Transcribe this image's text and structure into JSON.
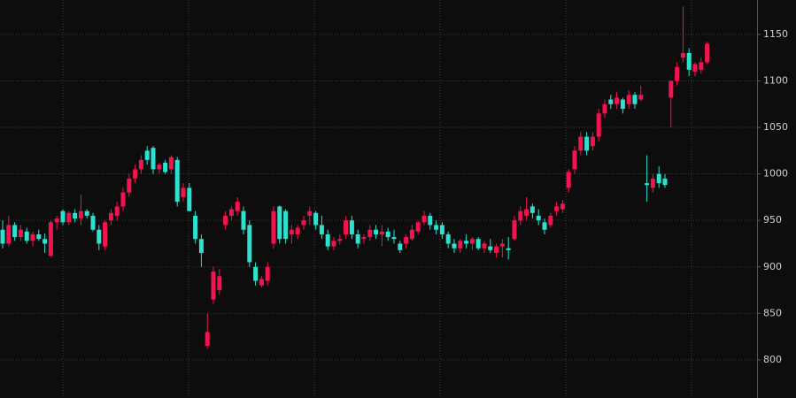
{
  "chart_data": {
    "type": "candlestick",
    "categories": [
      null,
      null,
      null,
      null,
      null,
      null,
      null,
      null,
      null,
      null,
      null,
      null,
      null,
      null,
      null,
      null,
      null,
      null,
      null,
      null,
      null,
      null,
      null,
      null,
      null,
      null,
      null,
      null,
      null,
      null,
      null,
      null,
      null,
      null,
      null,
      null,
      null,
      null,
      null,
      null,
      null,
      null,
      null,
      null,
      null,
      null,
      null,
      null,
      null,
      null,
      null,
      null,
      null,
      null,
      null,
      null,
      null,
      null,
      null,
      null,
      null,
      null,
      null,
      null,
      null,
      null,
      null,
      null,
      null,
      null,
      null,
      null,
      null,
      null,
      null,
      null,
      null,
      null,
      null,
      null,
      null,
      null,
      null,
      null,
      null,
      null,
      null,
      null,
      null,
      null,
      null,
      null,
      null,
      null,
      null,
      null,
      null,
      null,
      null,
      null,
      null,
      null,
      null,
      null,
      null,
      null,
      null,
      null,
      null,
      null,
      null,
      null,
      null,
      null,
      null,
      null,
      null,
      null
    ],
    "open": [
      940,
      925,
      945,
      932,
      938,
      928,
      935,
      930,
      912,
      948,
      960,
      948,
      958,
      952,
      960,
      955,
      940,
      922,
      950,
      955,
      965,
      980,
      995,
      1005,
      1025,
      1028,
      1005,
      1012,
      1005,
      1015,
      975,
      985,
      955,
      930,
      815,
      865,
      875,
      945,
      955,
      960,
      960,
      945,
      900,
      880,
      885,
      925,
      965,
      960,
      935,
      935,
      945,
      955,
      958,
      945,
      935,
      922,
      928,
      935,
      950,
      935,
      930,
      932,
      940,
      935,
      938,
      932,
      925,
      925,
      930,
      938,
      948,
      955,
      945,
      945,
      935,
      925,
      920,
      928,
      925,
      930,
      920,
      922,
      915,
      922,
      920,
      930,
      950,
      955,
      965,
      955,
      948,
      945,
      960,
      962,
      985,
      1005,
      1025,
      1040,
      1030,
      1040,
      1065,
      1080,
      1075,
      1080,
      1075,
      1085,
      1080,
      990,
      985,
      1000,
      995,
      1082,
      1100,
      1125,
      1130,
      1110,
      1112,
      1120
    ],
    "high": [
      950,
      955,
      948,
      945,
      942,
      938,
      940,
      936,
      950,
      955,
      962,
      960,
      962,
      978,
      962,
      958,
      945,
      950,
      962,
      970,
      985,
      1000,
      1010,
      1020,
      1030,
      1030,
      1012,
      1015,
      1020,
      1018,
      990,
      990,
      960,
      935,
      850,
      900,
      898,
      960,
      965,
      975,
      965,
      950,
      905,
      890,
      905,
      965,
      966,
      962,
      945,
      945,
      955,
      965,
      960,
      955,
      940,
      932,
      935,
      955,
      955,
      940,
      935,
      945,
      945,
      945,
      942,
      940,
      928,
      935,
      945,
      950,
      960,
      958,
      950,
      948,
      938,
      930,
      930,
      935,
      932,
      932,
      928,
      930,
      925,
      930,
      932,
      955,
      965,
      975,
      968,
      962,
      952,
      958,
      970,
      972,
      1005,
      1030,
      1045,
      1045,
      1045,
      1070,
      1080,
      1085,
      1088,
      1082,
      1090,
      1088,
      1095,
      1020,
      1000,
      1008,
      1000,
      1100,
      1120,
      1180,
      1135,
      1120,
      1125,
      1142
    ],
    "low": [
      920,
      922,
      928,
      928,
      925,
      922,
      928,
      915,
      910,
      940,
      945,
      945,
      948,
      945,
      952,
      938,
      918,
      918,
      945,
      950,
      960,
      975,
      990,
      1000,
      1010,
      1000,
      1000,
      1000,
      1000,
      965,
      970,
      960,
      925,
      900,
      812,
      860,
      870,
      940,
      950,
      955,
      935,
      900,
      880,
      878,
      880,
      920,
      925,
      925,
      925,
      930,
      940,
      945,
      940,
      930,
      918,
      918,
      924,
      930,
      930,
      920,
      925,
      928,
      930,
      922,
      928,
      925,
      915,
      920,
      928,
      935,
      945,
      940,
      935,
      930,
      920,
      915,
      915,
      920,
      918,
      918,
      915,
      915,
      910,
      910,
      908,
      928,
      945,
      950,
      952,
      945,
      935,
      942,
      955,
      958,
      980,
      1000,
      1020,
      1020,
      1025,
      1035,
      1060,
      1070,
      1070,
      1065,
      1070,
      1070,
      1078,
      970,
      980,
      985,
      985,
      1050,
      1095,
      1120,
      1105,
      1105,
      1108,
      1118
    ],
    "close": [
      925,
      945,
      932,
      940,
      928,
      935,
      930,
      925,
      948,
      952,
      948,
      958,
      952,
      960,
      955,
      940,
      925,
      948,
      958,
      965,
      980,
      995,
      1005,
      1015,
      1015,
      1005,
      1010,
      1002,
      1018,
      970,
      985,
      960,
      930,
      915,
      830,
      895,
      890,
      955,
      962,
      970,
      940,
      905,
      885,
      887,
      900,
      960,
      930,
      930,
      940,
      942,
      950,
      960,
      945,
      935,
      922,
      928,
      930,
      950,
      935,
      925,
      932,
      940,
      935,
      938,
      932,
      930,
      918,
      932,
      940,
      948,
      955,
      945,
      940,
      935,
      925,
      920,
      928,
      925,
      930,
      920,
      925,
      918,
      922,
      925,
      918,
      950,
      960,
      962,
      958,
      950,
      940,
      955,
      965,
      968,
      1002,
      1025,
      1040,
      1025,
      1040,
      1065,
      1075,
      1075,
      1082,
      1070,
      1085,
      1075,
      1085,
      988,
      995,
      990,
      988,
      1100,
      1115,
      1130,
      1112,
      1118,
      1120,
      1140
    ],
    "up_color": "#f2134f",
    "down_color": "#2ee0cf",
    "ylim": [
      759,
      1187
    ],
    "yticks": [
      800,
      850,
      900,
      950,
      1000,
      1050,
      1100,
      1150
    ],
    "grid": true
  }
}
